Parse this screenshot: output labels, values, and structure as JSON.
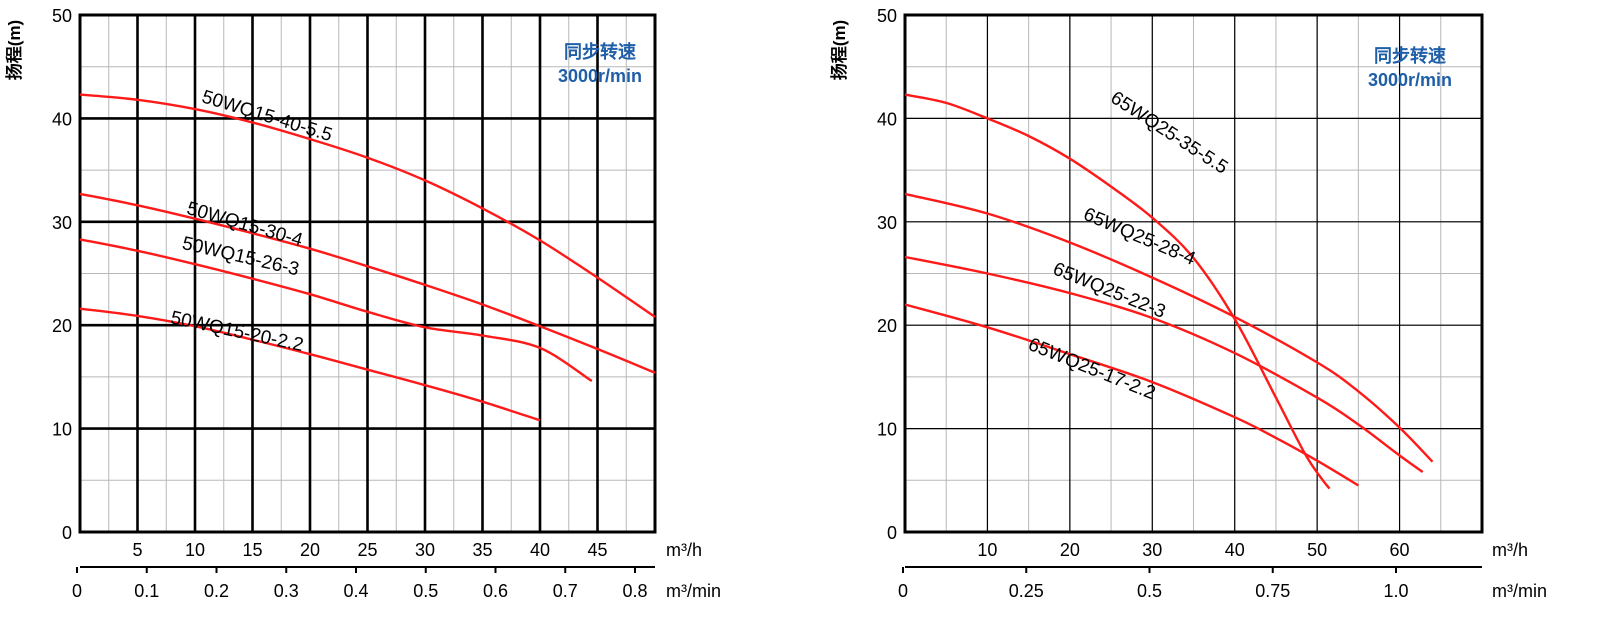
{
  "colors": {
    "curve": "#ff1a1a",
    "annotation": "#1f5fa8",
    "grid_major": "#000000",
    "grid_minor": "#b8b8b8"
  },
  "chart_data": [
    {
      "type": "line",
      "ylabel": "扬程(m)",
      "xlabel_primary": "m³/h",
      "xlabel_secondary": "m³/min",
      "annotation": [
        "同步转速",
        "3000r/min"
      ],
      "xlim": [
        0,
        50
      ],
      "ylim": [
        0,
        50
      ],
      "x_ticks": [
        5,
        10,
        15,
        20,
        25,
        30,
        35,
        40,
        45
      ],
      "x_ticks_secondary": [
        "0",
        "0.1",
        "0.2",
        "0.3",
        "0.4",
        "0.5",
        "0.6",
        "0.7",
        "0.8"
      ],
      "x_ticks_secondary_values": [
        0,
        0.1,
        0.2,
        0.3,
        0.4,
        0.5,
        0.6,
        0.7,
        0.8
      ],
      "y_ticks": [
        0,
        10,
        20,
        30,
        40,
        50
      ],
      "grid": true,
      "series": [
        {
          "name": "50WQ15-40-5.5",
          "x": [
            0,
            5,
            10,
            15,
            20,
            25,
            30,
            35,
            40,
            45,
            50
          ],
          "y": [
            42.3,
            41.8,
            40.9,
            39.6,
            38.0,
            36.2,
            34.0,
            31.3,
            28.2,
            24.6,
            20.8
          ]
        },
        {
          "name": "50WQ15-30-4",
          "x": [
            0,
            5,
            10,
            15,
            20,
            25,
            30,
            35,
            40,
            45,
            50
          ],
          "y": [
            32.7,
            31.6,
            30.3,
            28.9,
            27.4,
            25.7,
            23.9,
            22.0,
            19.9,
            17.7,
            15.4
          ]
        },
        {
          "name": "50WQ15-26-3",
          "x": [
            0,
            5,
            10,
            15,
            20,
            25,
            30,
            35,
            40,
            44.5
          ],
          "y": [
            28.3,
            27.2,
            25.9,
            24.5,
            23.0,
            21.3,
            19.8,
            19.0,
            17.8,
            14.6
          ]
        },
        {
          "name": "50WQ15-20-2.2",
          "x": [
            0,
            5,
            10,
            15,
            20,
            25,
            30,
            35,
            40
          ],
          "y": [
            21.6,
            20.9,
            19.9,
            18.6,
            17.2,
            15.7,
            14.2,
            12.6,
            10.8
          ]
        }
      ],
      "curve_labels": [
        {
          "series": "50WQ15-40-5.5",
          "x": 10.5,
          "y": 41.6,
          "angle": 17
        },
        {
          "series": "50WQ15-30-4",
          "x": 9.2,
          "y": 30.8,
          "angle": 16
        },
        {
          "series": "50WQ15-26-3",
          "x": 8.8,
          "y": 27.4,
          "angle": 13
        },
        {
          "series": "50WQ15-20-2.2",
          "x": 7.8,
          "y": 20.2,
          "angle": 12
        }
      ]
    },
    {
      "type": "line",
      "ylabel": "扬程(m)",
      "xlabel_primary": "m³/h",
      "xlabel_secondary": "m³/min",
      "annotation": [
        "同步转速",
        "3000r/min"
      ],
      "xlim": [
        0,
        70
      ],
      "ylim": [
        0,
        50
      ],
      "x_ticks": [
        10,
        20,
        30,
        40,
        50,
        60
      ],
      "x_ticks_secondary": [
        "0",
        "0.25",
        "0.5",
        "0.75",
        "1.0"
      ],
      "x_ticks_secondary_values": [
        0,
        0.25,
        0.5,
        0.75,
        1.0
      ],
      "y_ticks": [
        0,
        10,
        20,
        30,
        40,
        50
      ],
      "grid": true,
      "series": [
        {
          "name": "65WQ25-35-5.5",
          "x": [
            0,
            5,
            10,
            15,
            20,
            25,
            30,
            35,
            40,
            45,
            48.5,
            50.5,
            51.5
          ],
          "y": [
            42.3,
            41.5,
            40.0,
            38.3,
            36.1,
            33.4,
            30.4,
            26.5,
            20.6,
            13.0,
            7.6,
            5.2,
            4.2
          ]
        },
        {
          "name": "65WQ25-28-4",
          "x": [
            0,
            10,
            20,
            30,
            40,
            50,
            55,
            60,
            64
          ],
          "y": [
            32.7,
            30.8,
            28.0,
            24.6,
            20.8,
            16.4,
            13.6,
            10.1,
            6.8
          ]
        },
        {
          "name": "65WQ25-22-3",
          "x": [
            0,
            10,
            20,
            30,
            40,
            50,
            55,
            60,
            62.8
          ],
          "y": [
            26.6,
            25.0,
            23.1,
            20.7,
            17.3,
            13.0,
            10.4,
            7.4,
            5.8
          ]
        },
        {
          "name": "65WQ25-17-2.2",
          "x": [
            0,
            10,
            20,
            30,
            40,
            45,
            50,
            55
          ],
          "y": [
            22.0,
            19.8,
            17.2,
            14.5,
            11.1,
            9.1,
            6.9,
            4.5
          ]
        }
      ],
      "curve_labels": [
        {
          "series": "65WQ25-35-5.5",
          "x": 24.8,
          "y": 41.7,
          "angle": 33
        },
        {
          "series": "65WQ25-28-4",
          "x": 21.5,
          "y": 30.3,
          "angle": 23
        },
        {
          "series": "65WQ25-22-3",
          "x": 17.8,
          "y": 25.0,
          "angle": 22
        },
        {
          "series": "65WQ25-17-2.2",
          "x": 14.8,
          "y": 17.7,
          "angle": 22
        }
      ]
    }
  ]
}
